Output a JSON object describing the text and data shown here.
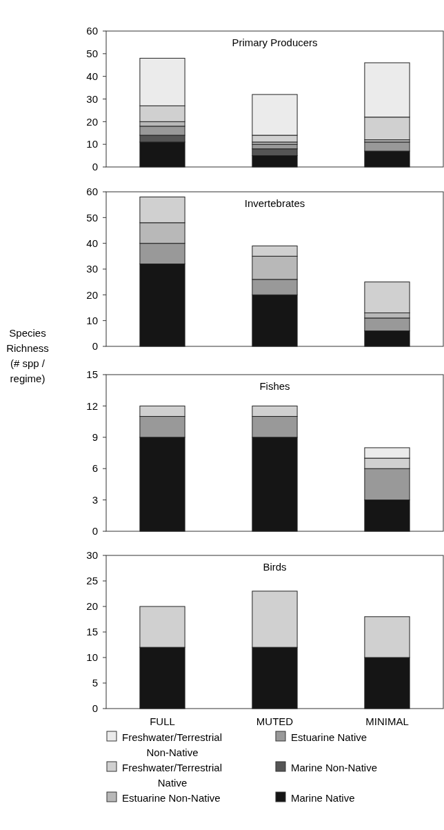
{
  "chart_data": [
    {
      "type": "bar",
      "stacked": true,
      "title": "Primary Producers",
      "categories": [
        null,
        null,
        null
      ],
      "ylim": [
        0,
        60
      ],
      "yticks": [
        0,
        10,
        20,
        30,
        40,
        50,
        60
      ],
      "legend": false,
      "series": [
        {
          "color": "#151515",
          "values": [
            11,
            5,
            7
          ]
        },
        {
          "color": "#555555",
          "values": [
            3,
            3,
            0
          ]
        },
        {
          "color": "#999999",
          "values": [
            4,
            2,
            4
          ]
        },
        {
          "color": "#b8b8b8",
          "values": [
            2,
            1,
            1
          ]
        },
        {
          "color": "#d0d0d0",
          "values": [
            7,
            3,
            10
          ]
        },
        {
          "color": "#ebebeb",
          "values": [
            21,
            18,
            24
          ]
        }
      ]
    },
    {
      "type": "bar",
      "stacked": true,
      "title": "Invertebrates",
      "ylabel": "Species Richness (# spp / regime)",
      "categories": [
        null,
        null,
        null
      ],
      "ylim": [
        0,
        60
      ],
      "yticks": [
        0,
        10,
        20,
        30,
        40,
        50,
        60
      ],
      "legend": false,
      "series": [
        {
          "color": "#151515",
          "values": [
            32,
            20,
            6
          ]
        },
        {
          "color": "#555555",
          "values": [
            0,
            0,
            0
          ]
        },
        {
          "color": "#999999",
          "values": [
            8,
            6,
            5
          ]
        },
        {
          "color": "#b8b8b8",
          "values": [
            8,
            9,
            2
          ]
        },
        {
          "color": "#d0d0d0",
          "values": [
            10,
            4,
            12
          ]
        },
        {
          "color": "#ebebeb",
          "values": [
            0,
            0,
            0
          ]
        }
      ]
    },
    {
      "type": "bar",
      "stacked": true,
      "title": "Fishes",
      "categories": [
        null,
        null,
        null
      ],
      "ylim": [
        0,
        15
      ],
      "yticks": [
        0,
        3,
        6,
        9,
        12,
        15
      ],
      "legend": false,
      "series": [
        {
          "color": "#151515",
          "values": [
            9,
            9,
            3
          ]
        },
        {
          "color": "#555555",
          "values": [
            0,
            0,
            0
          ]
        },
        {
          "color": "#999999",
          "values": [
            2,
            2,
            3
          ]
        },
        {
          "color": "#b8b8b8",
          "values": [
            0,
            0,
            0
          ]
        },
        {
          "color": "#d0d0d0",
          "values": [
            1,
            1,
            1
          ]
        },
        {
          "color": "#ebebeb",
          "values": [
            0,
            0,
            1
          ]
        }
      ]
    },
    {
      "type": "bar",
      "stacked": true,
      "title": "Birds",
      "categories": [
        "FULL",
        "MUTED",
        "MINIMAL"
      ],
      "ylim": [
        0,
        30
      ],
      "yticks": [
        0,
        5,
        10,
        15,
        20,
        25,
        30
      ],
      "legend": "bottom",
      "series": [
        {
          "name": "Marine Native",
          "color": "#151515",
          "values": [
            12,
            12,
            10
          ]
        },
        {
          "name": "Marine Non-Native",
          "color": "#555555",
          "values": [
            0,
            0,
            0
          ]
        },
        {
          "name": "Estuarine Native",
          "color": "#999999",
          "values": [
            0,
            0,
            0
          ]
        },
        {
          "name": "Estuarine Non-Native",
          "color": "#b8b8b8",
          "values": [
            0,
            0,
            0
          ]
        },
        {
          "name": "Freshwater/Terrestrial Native",
          "color": "#d0d0d0",
          "values": [
            8,
            11,
            8
          ]
        },
        {
          "name": "Freshwater/Terrestrial Non-Native",
          "color": "#ebebeb",
          "values": [
            0,
            0,
            0
          ]
        }
      ]
    }
  ]
}
